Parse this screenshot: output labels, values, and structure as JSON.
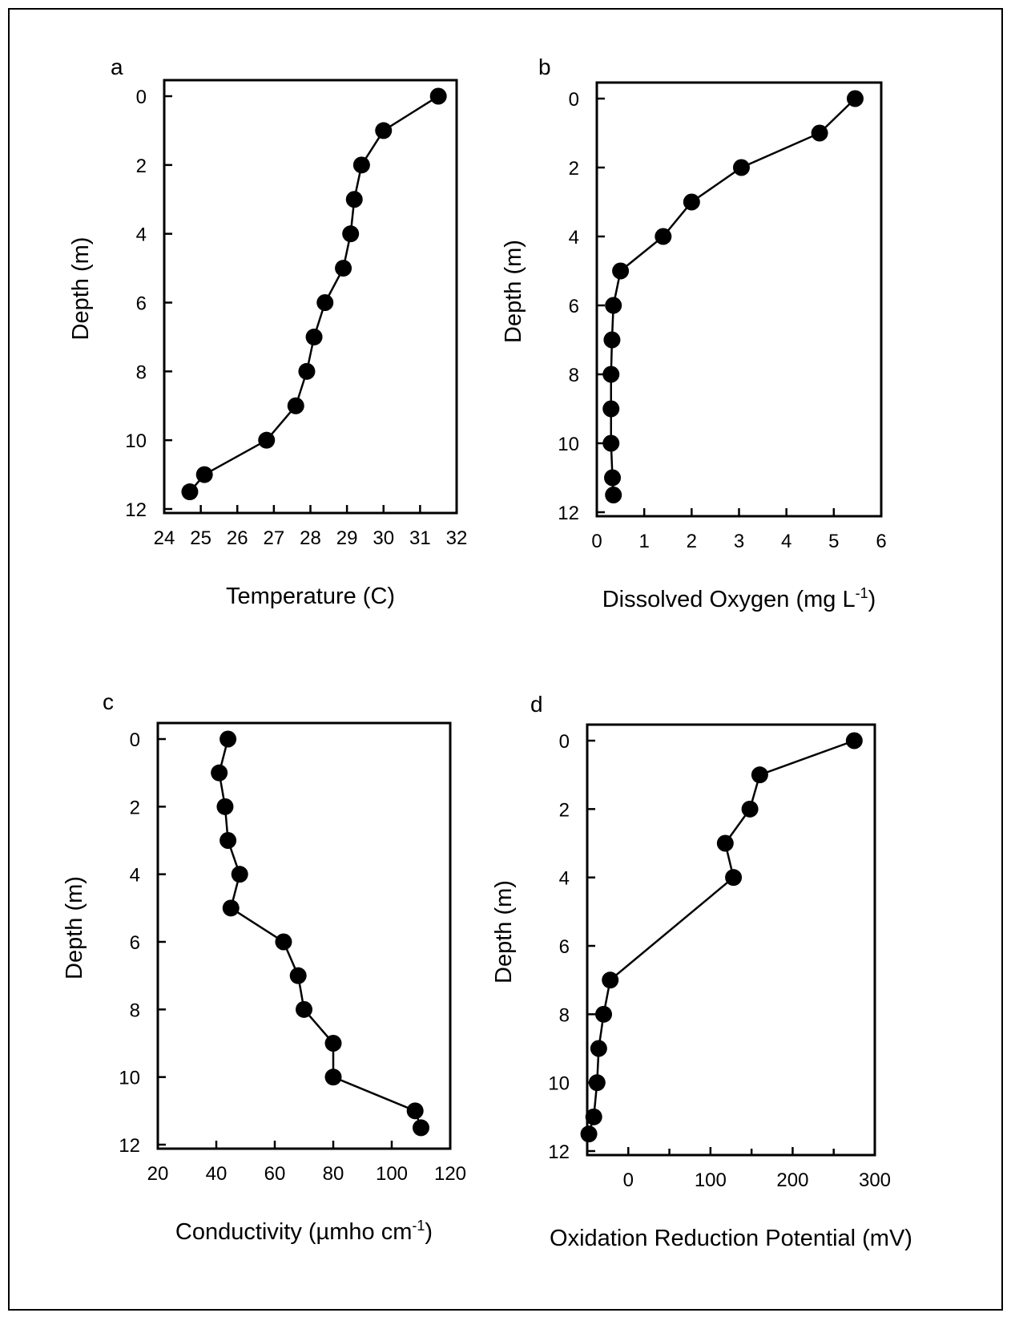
{
  "chart_data": [
    {
      "type": "line",
      "panel_label": "a",
      "xlabel": "Temperature (C)",
      "xlabel_sup": "",
      "xlabel_end": "",
      "ylabel": "Depth (m)",
      "xlim": [
        24,
        32
      ],
      "ylim": [
        0,
        12
      ],
      "y_inverted": true,
      "xticks": [
        24,
        25,
        26,
        27,
        28,
        29,
        30,
        31,
        32
      ],
      "yticks": [
        0,
        2,
        4,
        6,
        8,
        10,
        12
      ],
      "series": [
        {
          "x": [
            31.5,
            30.0,
            29.4,
            29.2,
            29.1,
            28.9,
            28.4,
            28.1,
            27.9,
            27.6,
            26.8,
            25.1,
            24.7
          ],
          "y": [
            0,
            1,
            2,
            3,
            4,
            5,
            6,
            7,
            8,
            9,
            10,
            11,
            11.5
          ]
        }
      ],
      "grid": false
    },
    {
      "type": "line",
      "panel_label": "b",
      "xlabel": "Dissolved Oxygen (mg L",
      "xlabel_sup": "-1",
      "xlabel_end": ")",
      "ylabel": "Depth (m)",
      "xlim": [
        0,
        6
      ],
      "ylim": [
        0,
        12
      ],
      "y_inverted": true,
      "xticks": [
        0,
        1,
        2,
        3,
        4,
        5,
        6
      ],
      "yticks": [
        0,
        2,
        4,
        6,
        8,
        10,
        12
      ],
      "series": [
        {
          "x": [
            5.45,
            4.7,
            3.05,
            2.0,
            1.4,
            0.5,
            0.35,
            0.32,
            0.3,
            0.3,
            0.3,
            0.33,
            0.35
          ],
          "y": [
            0,
            1,
            2,
            3,
            4,
            5,
            6,
            7,
            8,
            9,
            10,
            11,
            11.5
          ]
        }
      ],
      "grid": false
    },
    {
      "type": "line",
      "panel_label": "c",
      "xlabel": "Conductivity (µmho cm",
      "xlabel_sup": "-1",
      "xlabel_end": ")",
      "ylabel": "Depth (m)",
      "xlim": [
        20,
        120
      ],
      "ylim": [
        0,
        12
      ],
      "y_inverted": true,
      "xticks": [
        20,
        40,
        60,
        80,
        100,
        120
      ],
      "yticks": [
        0,
        2,
        4,
        6,
        8,
        10,
        12
      ],
      "series": [
        {
          "x": [
            44,
            41,
            43,
            44,
            48,
            45,
            63,
            68,
            70,
            80,
            80,
            108,
            110
          ],
          "y": [
            0,
            1,
            2,
            3,
            4,
            5,
            6,
            7,
            8,
            9,
            10,
            11,
            11.5
          ]
        }
      ],
      "grid": false
    },
    {
      "type": "line",
      "panel_label": "d",
      "xlabel": "Oxidation Reduction Potential (mV)",
      "xlabel_sup": "",
      "xlabel_end": "",
      "ylabel": "Depth (m)",
      "xlim": [
        -50,
        300
      ],
      "ylim": [
        0,
        12
      ],
      "y_inverted": true,
      "xticks": [
        0,
        100,
        200,
        300
      ],
      "xminor": [
        -50,
        50,
        150,
        250
      ],
      "yticks": [
        0,
        2,
        4,
        6,
        8,
        10,
        12
      ],
      "series": [
        {
          "x": [
            275,
            160,
            148,
            118,
            128,
            -22,
            -30,
            -36,
            -38,
            -42,
            -48
          ],
          "y": [
            0,
            1,
            2,
            3,
            4,
            7,
            8,
            9,
            10,
            11,
            11.5
          ]
        }
      ],
      "grid": false
    }
  ]
}
